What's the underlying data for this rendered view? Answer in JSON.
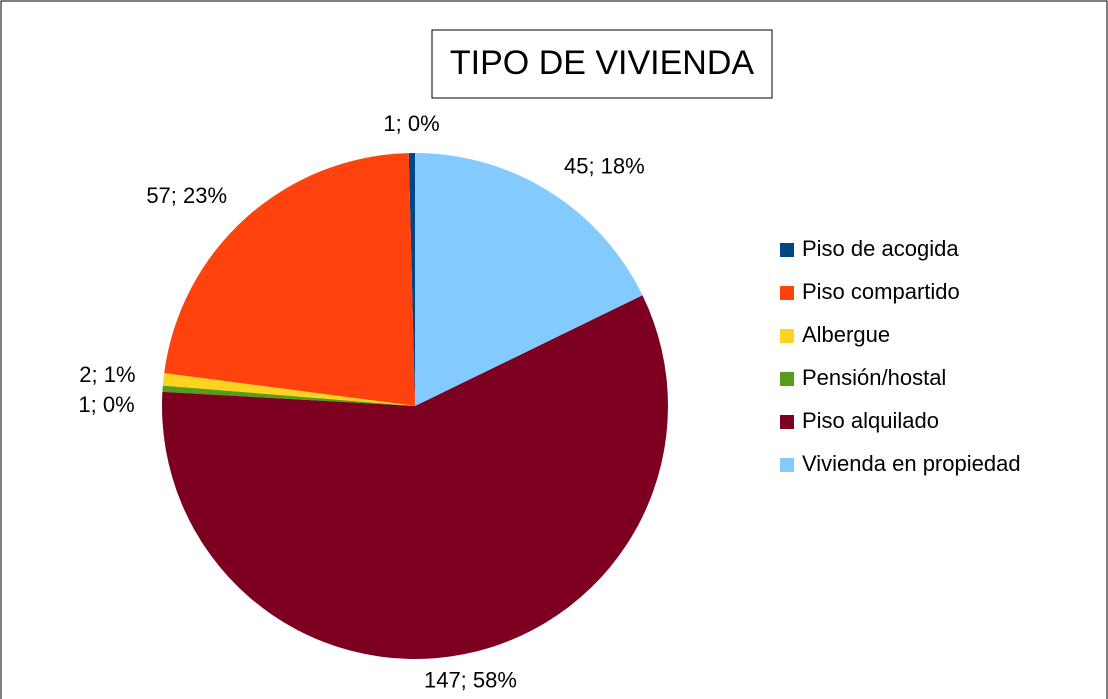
{
  "chart_data": {
    "type": "pie",
    "title": "TIPO DE VIVIENDA",
    "categories": [
      "Piso de acogida",
      "Piso compartido",
      "Albergue",
      "Pensión/hostal",
      "Piso alquilado",
      "Vivienda en propiedad"
    ],
    "values": [
      1,
      57,
      2,
      1,
      147,
      45
    ],
    "value_labels": [
      "1; 0%",
      "57; 23%",
      "2; 1%",
      "1; 0%",
      "147; 58%",
      "45; 18%"
    ],
    "colors": [
      "#004586",
      "#ff420e",
      "#ffd320",
      "#579d1c",
      "#7e0021",
      "#83caff"
    ],
    "legend": "right"
  }
}
